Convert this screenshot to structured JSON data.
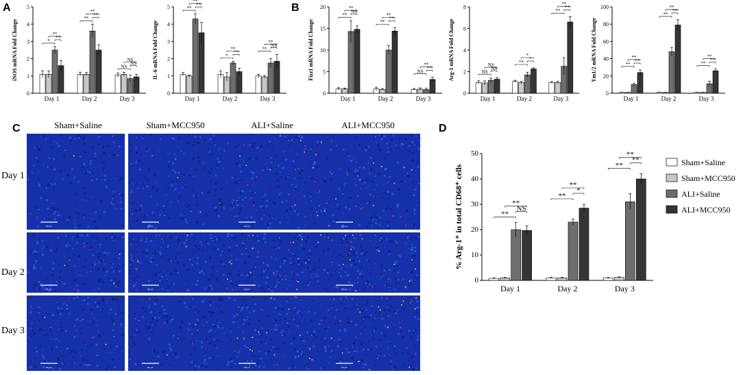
{
  "panel_letters": [
    "A",
    "B",
    "C",
    "D"
  ],
  "series_names": [
    "Sham+Saline",
    "Sham+MCC950",
    "ALI+Saline",
    "ALI+MCC950"
  ],
  "colors": [
    "#ffffff",
    "#c8c8c8",
    "#6e6e6e",
    "#353535"
  ],
  "micrograph_grid": {
    "column_headers": [
      "Sham+Saline",
      "Sham+MCC950",
      "ALI+Saline",
      "ALI+MCC950"
    ],
    "row_headers": [
      "Day 1",
      "Day 2",
      "Day 3"
    ],
    "scale_bar_label": "100 μm",
    "background_color": "#1530a8"
  },
  "chart_data": [
    {
      "id": "iNOS",
      "type": "bar",
      "categories": [
        "Day 1",
        "Day 2",
        "Day 3"
      ],
      "ylabel": "iNOS mRNA Fold Change",
      "ylim": [
        0,
        5
      ],
      "yticks": [
        0,
        1,
        2,
        3,
        4,
        5
      ],
      "series": [
        {
          "name": "Sham+Saline",
          "values": [
            1.1,
            1.1,
            1.05
          ],
          "errors": [
            0.2,
            0.12,
            0.12
          ]
        },
        {
          "name": "Sham+MCC950",
          "values": [
            1.1,
            1.1,
            1.1
          ],
          "errors": [
            0.2,
            0.1,
            0.12
          ]
        },
        {
          "name": "ALI+Saline",
          "values": [
            2.5,
            3.6,
            0.85
          ],
          "errors": [
            0.2,
            0.4,
            0.2
          ]
        },
        {
          "name": "ALI+MCC950",
          "values": [
            1.6,
            2.5,
            0.95
          ],
          "errors": [
            0.3,
            0.3,
            0.15
          ]
        }
      ],
      "annotations": [
        "*",
        "**",
        "**",
        "**",
        "**",
        "**",
        "NS",
        "NS",
        "NS"
      ]
    },
    {
      "id": "IL-6",
      "type": "bar",
      "categories": [
        "Day 1",
        "Day 2",
        "Day 3"
      ],
      "ylabel": "IL-6 mRNA Fold Change",
      "ylim": [
        0,
        5
      ],
      "yticks": [
        0,
        1,
        2,
        3,
        4,
        5
      ],
      "series": [
        {
          "name": "Sham+Saline",
          "values": [
            1.1,
            1.1,
            1.0
          ],
          "errors": [
            0.1,
            0.2,
            0.1
          ]
        },
        {
          "name": "Sham+MCC950",
          "values": [
            1.0,
            0.95,
            0.95
          ],
          "errors": [
            0.05,
            0.25,
            0.08
          ]
        },
        {
          "name": "ALI+Saline",
          "values": [
            4.3,
            1.75,
            1.75
          ],
          "errors": [
            0.3,
            0.1,
            0.25
          ]
        },
        {
          "name": "ALI+MCC950",
          "values": [
            3.5,
            1.25,
            1.85
          ],
          "errors": [
            0.6,
            0.2,
            0.4
          ]
        }
      ],
      "annotations": [
        "**",
        "**",
        "**",
        "*",
        "**",
        "**",
        "**",
        "**",
        "NS"
      ]
    },
    {
      "id": "Fizz1",
      "type": "bar",
      "categories": [
        "Day 1",
        "Day 2",
        "Day 3"
      ],
      "ylabel": "Fizz1 mRNA Fold Change",
      "ylim": [
        0,
        20
      ],
      "yticks": [
        0,
        5,
        10,
        15,
        20
      ],
      "series": [
        {
          "name": "Sham+Saline",
          "values": [
            1.0,
            1.0,
            0.9
          ],
          "errors": [
            0.3,
            0.4,
            0.2
          ]
        },
        {
          "name": "Sham+MCC950",
          "values": [
            1.0,
            0.9,
            0.95
          ],
          "errors": [
            0.2,
            0.2,
            0.3
          ]
        },
        {
          "name": "ALI+Saline",
          "values": [
            14.3,
            10.0,
            0.85
          ],
          "errors": [
            2.5,
            1.0,
            0.3
          ]
        },
        {
          "name": "ALI+MCC950",
          "values": [
            14.8,
            14.4,
            3.2
          ],
          "errors": [
            0.8,
            0.8,
            0.5
          ]
        }
      ],
      "annotations": [
        "**",
        "**",
        "NS",
        "**",
        "**",
        "**",
        "NS",
        "**",
        "**"
      ]
    },
    {
      "id": "Arg-1",
      "type": "bar",
      "categories": [
        "Day 1",
        "Day 2",
        "Day 3"
      ],
      "ylabel": "Arg-1 mRNA Fold Change",
      "ylim": [
        0,
        8
      ],
      "yticks": [
        0,
        2,
        4,
        6,
        8
      ],
      "series": [
        {
          "name": "Sham+Saline",
          "values": [
            1.0,
            1.1,
            1.0
          ],
          "errors": [
            0.15,
            0.1,
            0.08
          ]
        },
        {
          "name": "Sham+MCC950",
          "values": [
            0.95,
            1.0,
            1.0
          ],
          "errors": [
            0.2,
            0.1,
            0.1
          ]
        },
        {
          "name": "ALI+Saline",
          "values": [
            1.2,
            1.7,
            2.5
          ],
          "errors": [
            0.2,
            0.25,
            0.8
          ]
        },
        {
          "name": "ALI+MCC950",
          "values": [
            1.3,
            2.25,
            6.6
          ],
          "errors": [
            0.15,
            0.1,
            0.5
          ]
        }
      ],
      "annotations": [
        "NS",
        "NS",
        "NS",
        "**",
        "*",
        "*",
        "**",
        "**",
        "**"
      ]
    },
    {
      "id": "Ym1/2",
      "type": "bar",
      "categories": [
        "Day 1",
        "Day 2",
        "Day 3"
      ],
      "ylabel": "Ym1/2 mRNA Fold Change",
      "ylim": [
        0,
        100
      ],
      "yticks": [
        0,
        20,
        40,
        60,
        80,
        100
      ],
      "series": [
        {
          "name": "Sham+Saline",
          "values": [
            1.0,
            1.0,
            1.0
          ],
          "errors": [
            0.2,
            0.2,
            0.2
          ]
        },
        {
          "name": "Sham+MCC950",
          "values": [
            1.0,
            1.0,
            1.0
          ],
          "errors": [
            0.2,
            0.2,
            0.2
          ]
        },
        {
          "name": "ALI+Saline",
          "values": [
            10,
            48,
            11
          ],
          "errors": [
            1.5,
            5,
            3
          ]
        },
        {
          "name": "ALI+MCC950",
          "values": [
            24,
            79,
            26
          ],
          "errors": [
            3,
            6,
            2
          ]
        }
      ],
      "annotations": [
        "**",
        "**",
        "**",
        "**",
        "**",
        "**",
        "**",
        "**",
        "**"
      ]
    },
    {
      "id": "Arg1-CD68",
      "type": "bar",
      "categories": [
        "Day 1",
        "Day 2",
        "Day 3"
      ],
      "ylabel": "% Arg-1⁺ in total CD68⁺ cells",
      "ylim": [
        0,
        50
      ],
      "yticks": [
        0,
        10,
        20,
        30,
        40,
        50
      ],
      "legend": "right",
      "series": [
        {
          "name": "Sham+Saline",
          "values": [
            0.8,
            1.0,
            1.0
          ],
          "errors": [
            0.2,
            0.2,
            0.2
          ]
        },
        {
          "name": "Sham+MCC950",
          "values": [
            1.0,
            1.0,
            1.2
          ],
          "errors": [
            0.2,
            0.2,
            0.2
          ]
        },
        {
          "name": "ALI+Saline",
          "values": [
            20,
            23,
            31
          ],
          "errors": [
            2.8,
            1.2,
            3.2
          ]
        },
        {
          "name": "ALI+MCC950",
          "values": [
            19.7,
            28.5,
            40
          ],
          "errors": [
            1.8,
            1.5,
            2.0
          ]
        }
      ],
      "annotations": [
        "**",
        "**",
        "NS",
        "**",
        "**",
        "*",
        "**",
        "**",
        "**"
      ]
    }
  ]
}
